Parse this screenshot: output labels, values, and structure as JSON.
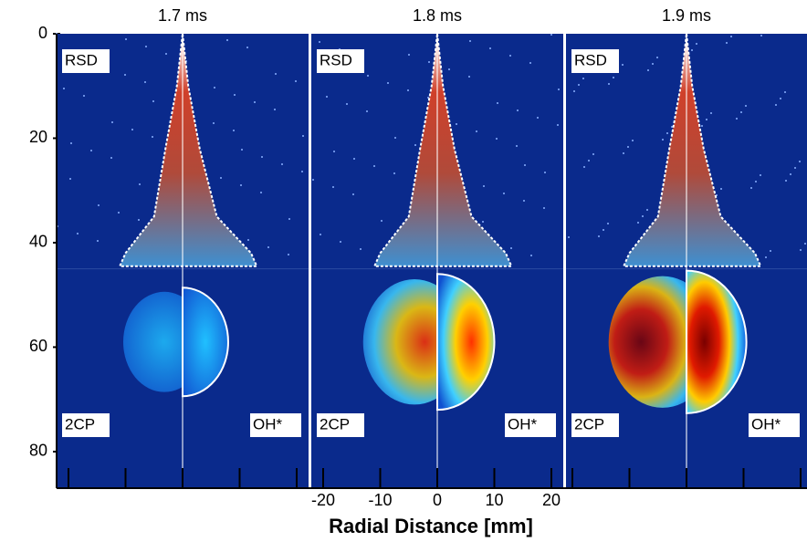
{
  "chart_data": {
    "type": "image-panels",
    "panels": [
      {
        "title": "1.7 ms",
        "labels": [
          "RSD",
          "2CP",
          "OH*"
        ]
      },
      {
        "title": "1.8 ms",
        "labels": [
          "RSD",
          "2CP",
          "OH*"
        ]
      },
      {
        "title": "1.9 ms",
        "labels": [
          "RSD",
          "2CP",
          "OH*"
        ]
      }
    ],
    "xlabel": "Radial Distance [mm]",
    "xlim": [
      -22,
      22
    ],
    "xticks": [
      -20,
      -10,
      0,
      10,
      20
    ],
    "ylim": [
      0,
      87
    ],
    "yticks": [
      0,
      20,
      40,
      60,
      80
    ]
  }
}
